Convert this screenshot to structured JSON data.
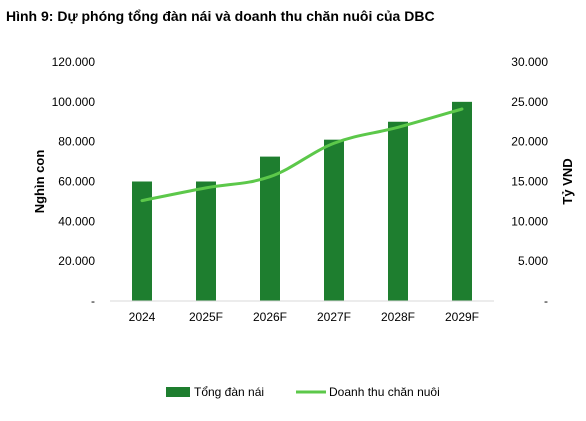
{
  "figure": {
    "title": "Hình 9: Dự phóng tổng đàn nái và doanh thu chăn nuôi của DBC"
  },
  "chart_data": {
    "type": "bar",
    "categories": [
      "2024",
      "2025F",
      "2026F",
      "2027F",
      "2028F",
      "2029F"
    ],
    "series": [
      {
        "name": "Tổng đàn nái",
        "type": "bar",
        "axis": "left",
        "color": "#1e7e2f",
        "values": [
          60000,
          60000,
          72500,
          81000,
          90000,
          100000
        ]
      },
      {
        "name": "Doanh thu chăn nuôi",
        "type": "line",
        "axis": "right",
        "color": "#5cc84a",
        "values": [
          12.6,
          14.2,
          15.6,
          19.8,
          21.8,
          24.1
        ]
      }
    ],
    "y_left": {
      "label": "Nghìn con",
      "ylim": [
        0,
        120000
      ],
      "ticks": [
        0,
        20000,
        40000,
        60000,
        80000,
        100000,
        120000
      ],
      "tick_labels": [
        "-",
        "20.000",
        "40.000",
        "60.000",
        "80.000",
        "100.000",
        "120.000"
      ]
    },
    "y_right": {
      "label": "Tỷ VND",
      "ylim": [
        0,
        30000
      ],
      "ticks": [
        0,
        5000,
        10000,
        15000,
        20000,
        25000,
        30000
      ],
      "tick_labels": [
        "-",
        "5.000",
        "10.000",
        "15.000",
        "20.000",
        "25.000",
        "30.000"
      ]
    },
    "grid": false,
    "legend": {
      "position": "bottom",
      "entries": [
        "Tổng đàn nái",
        "Doanh thu chăn nuôi"
      ]
    }
  }
}
